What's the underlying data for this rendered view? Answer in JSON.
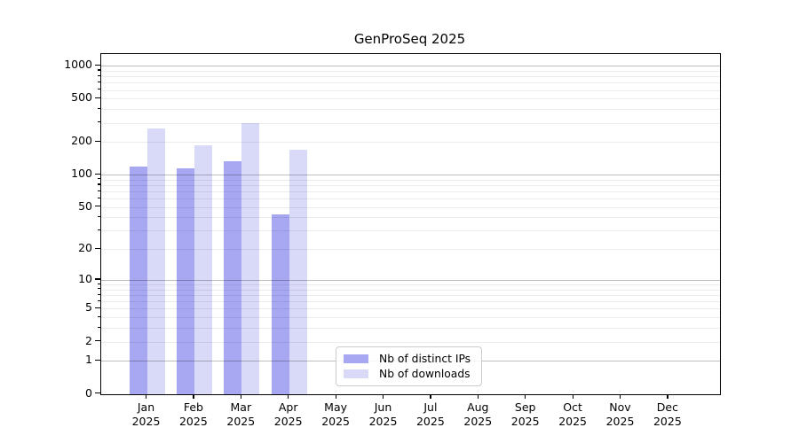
{
  "title": "GenProSeq 2025",
  "chart_data": {
    "type": "bar",
    "title": "GenProSeq 2025",
    "y_scale": "log10(1+x)",
    "ylim": [
      0,
      1280
    ],
    "grid": "horizontal major (1,10,100,1000) + minor (2-9 per decade)",
    "legend_position": "inside axes, lower center",
    "categories": [
      "Jan 2025",
      "Feb 2025",
      "Mar 2025",
      "Apr 2025",
      "May 2025",
      "Jun 2025",
      "Jul 2025",
      "Aug 2025",
      "Sep 2025",
      "Oct 2025",
      "Nov 2025",
      "Dec 2025"
    ],
    "month_labels": [
      "Jan",
      "Feb",
      "Mar",
      "Apr",
      "May",
      "Jun",
      "Jul",
      "Aug",
      "Sep",
      "Oct",
      "Nov",
      "Dec"
    ],
    "year_label": "2025",
    "y_tick_values": [
      0,
      1,
      2,
      5,
      10,
      20,
      50,
      100,
      200,
      500,
      1000
    ],
    "y_tick_labels": [
      "0",
      "1",
      "2",
      "5",
      "10",
      "20",
      "50",
      "100",
      "200",
      "500",
      "1000"
    ],
    "series": [
      {
        "name": "Nb of distinct IPs",
        "color": "#a8a8f2",
        "values": [
          118,
          115,
          133,
          43,
          0,
          0,
          0,
          0,
          0,
          0,
          0,
          0
        ]
      },
      {
        "name": "Nb of downloads",
        "color": "#d9d9f8",
        "values": [
          267,
          188,
          298,
          170,
          0,
          0,
          0,
          0,
          0,
          0,
          0,
          0
        ]
      }
    ]
  }
}
